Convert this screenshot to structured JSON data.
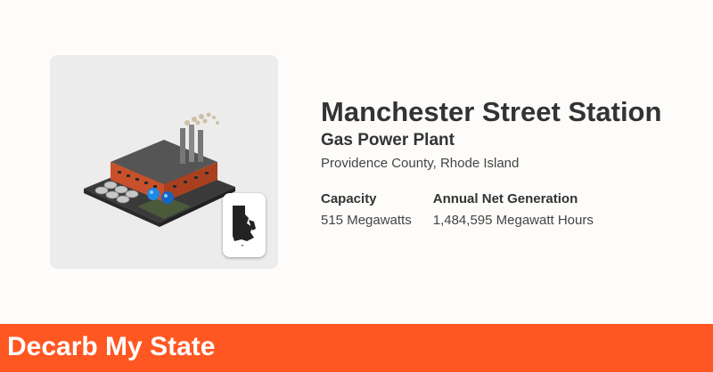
{
  "plant": {
    "name": "Manchester Street Station",
    "type": "Gas Power Plant",
    "location": "Providence County, Rhode Island"
  },
  "stats": {
    "capacity_label": "Capacity",
    "capacity_value": "515 Megawatts",
    "generation_label": "Annual Net Generation",
    "generation_value": "1,484,595 Megawatt Hours"
  },
  "footer": {
    "brand": "Decarb My State"
  },
  "icons": {
    "plant": "gas-power-plant-icon",
    "state": "rhode-island-state-icon"
  },
  "colors": {
    "accent": "#ff5722",
    "card_bg": "#ececec",
    "text": "#333333"
  }
}
